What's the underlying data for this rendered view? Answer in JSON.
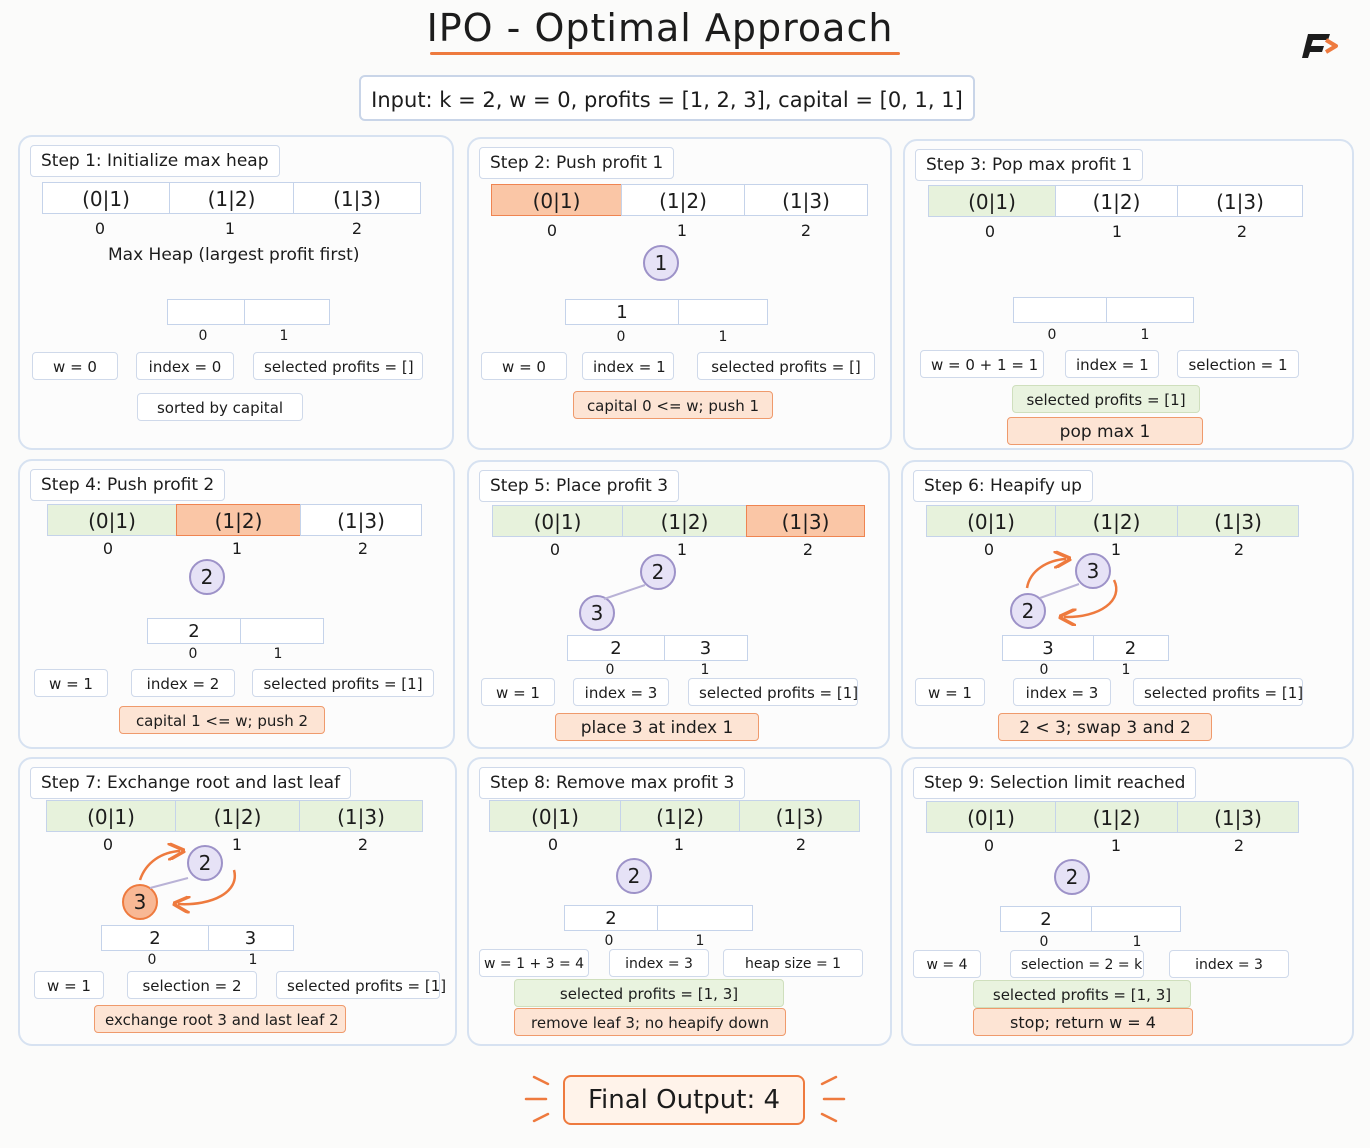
{
  "title": "IPO - Optimal Approach",
  "input": "Input: k = 2, w = 0, profits = [1, 2, 3], capital = [0, 1, 1]",
  "final": "Final Output: 4",
  "colors": {
    "accent": "#ee7a3e",
    "green_fill": "#e7f2dc",
    "orange_fill": "#fac6a6",
    "node_fill": "#e6e2f6"
  },
  "cells": [
    "(0|1)",
    "(1|2)",
    "(1|3)"
  ],
  "cell_idx": [
    "0",
    "1",
    "2"
  ],
  "steps": [
    {
      "title": "Step 1: Initialize max heap",
      "note": "Max Heap (largest profit first)",
      "heap": [
        "",
        ""
      ],
      "heap_idx": [
        "0",
        "1"
      ],
      "boxes": [
        "w = 0",
        "index = 0",
        "selected profits = []",
        "sorted by capital"
      ]
    },
    {
      "title": "Step 2: Push profit 1",
      "node": "1",
      "heap": [
        "1",
        ""
      ],
      "heap_idx": [
        "0",
        "1"
      ],
      "boxes": [
        "w = 0",
        "index = 1",
        "selected profits = []",
        "capital 0 <= w; push 1"
      ]
    },
    {
      "title": "Step 3: Pop max profit 1",
      "heap": [
        "",
        ""
      ],
      "heap_idx": [
        "0",
        "1"
      ],
      "boxes": [
        "w = 0 + 1 = 1",
        "index = 1",
        "selection = 1",
        "selected profits = [1]",
        "pop max 1"
      ]
    },
    {
      "title": "Step 4: Push profit 2",
      "node": "2",
      "heap": [
        "2",
        ""
      ],
      "heap_idx": [
        "0",
        "1"
      ],
      "boxes": [
        "w = 1",
        "index = 2",
        "selected profits = [1]",
        "capital 1 <= w; push 2"
      ]
    },
    {
      "title": "Step 5: Place profit 3",
      "nodes": [
        "2",
        "3"
      ],
      "heap": [
        "2",
        "3"
      ],
      "heap_idx": [
        "0",
        "1"
      ],
      "boxes": [
        "w = 1",
        "index = 3",
        "selected profits = [1]",
        "place 3 at index 1"
      ]
    },
    {
      "title": "Step 6: Heapify up",
      "nodes": [
        "3",
        "2"
      ],
      "heap": [
        "3",
        "2"
      ],
      "heap_idx": [
        "0",
        "1"
      ],
      "boxes": [
        "w = 1",
        "index = 3",
        "selected profits = [1]",
        "2 < 3; swap 3 and 2"
      ]
    },
    {
      "title": "Step 7: Exchange root and last leaf",
      "nodes": [
        "2",
        "3"
      ],
      "heap": [
        "2",
        "3"
      ],
      "heap_idx": [
        "0",
        "1"
      ],
      "boxes": [
        "w = 1",
        "selection = 2",
        "selected profits = [1]",
        "exchange root 3 and last leaf 2"
      ]
    },
    {
      "title": "Step 8: Remove max profit 3",
      "node": "2",
      "heap": [
        "2",
        ""
      ],
      "heap_idx": [
        "0",
        "1"
      ],
      "boxes": [
        "w = 1 + 3 = 4",
        "index = 3",
        "heap size = 1",
        "selected profits = [1, 3]",
        "remove leaf 3; no heapify down"
      ]
    },
    {
      "title": "Step 9: Selection limit reached",
      "node": "2",
      "heap": [
        "2",
        ""
      ],
      "heap_idx": [
        "0",
        "1"
      ],
      "boxes": [
        "w = 4",
        "selection = 2 = k",
        "index = 3",
        "selected profits = [1, 3]",
        "stop; return w = 4"
      ]
    }
  ]
}
